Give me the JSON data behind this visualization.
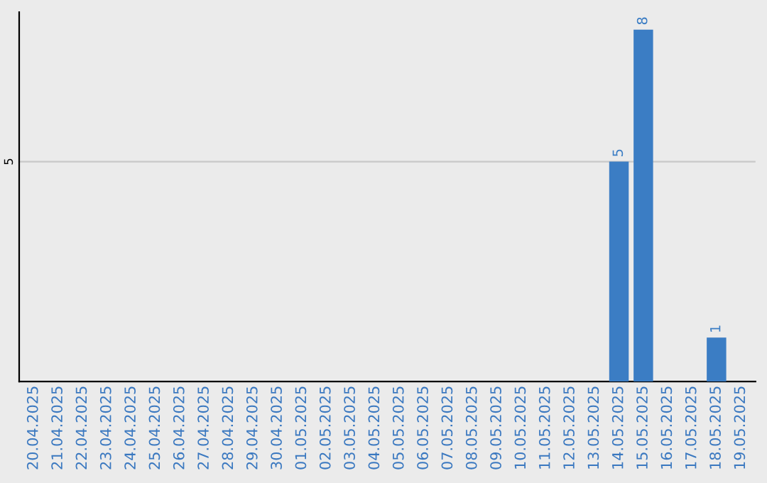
{
  "chart_data": {
    "type": "bar",
    "categories": [
      "20.04.2025",
      "21.04.2025",
      "22.04.2025",
      "23.04.2025",
      "24.04.2025",
      "25.04.2025",
      "26.04.2025",
      "27.04.2025",
      "28.04.2025",
      "29.04.2025",
      "30.04.2025",
      "01.05.2025",
      "02.05.2025",
      "03.05.2025",
      "04.05.2025",
      "05.05.2025",
      "06.05.2025",
      "07.05.2025",
      "08.05.2025",
      "09.05.2025",
      "10.05.2025",
      "11.05.2025",
      "12.05.2025",
      "13.05.2025",
      "14.05.2025",
      "15.05.2025",
      "16.05.2025",
      "17.05.2025",
      "18.05.2025",
      "19.05.2025"
    ],
    "values": [
      null,
      null,
      null,
      null,
      null,
      null,
      null,
      null,
      null,
      null,
      null,
      null,
      null,
      null,
      null,
      null,
      null,
      null,
      null,
      null,
      null,
      null,
      null,
      null,
      5,
      8,
      null,
      null,
      1,
      null
    ],
    "color": "#3b7dc4",
    "ylim": [
      0,
      8.4
    ],
    "yticks": [
      5
    ],
    "grid": "y",
    "data_labels": true
  }
}
